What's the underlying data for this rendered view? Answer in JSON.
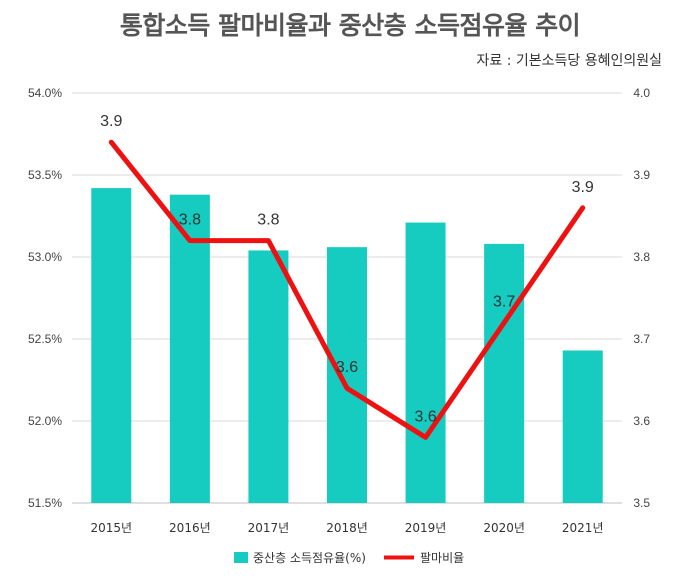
{
  "title": "통합소득 팔마비율과 중산층 소득점유율 추이",
  "source": "자료 : 기본소득당 용혜인의원실",
  "colors": {
    "bar": "#16CBC0",
    "line": "#EE1111",
    "grid": "#D9D9D9"
  },
  "chart_data": {
    "type": "bar",
    "categories": [
      "2015년",
      "2016년",
      "2017년",
      "2018년",
      "2019년",
      "2020년",
      "2021년"
    ],
    "series": [
      {
        "name": "중산층 소득점유율(%)",
        "type": "bar",
        "axis": "left",
        "values": [
          53.42,
          53.38,
          53.04,
          53.06,
          53.21,
          53.08,
          52.43
        ]
      },
      {
        "name": "팔마비율",
        "type": "line",
        "axis": "right",
        "values": [
          3.94,
          3.82,
          3.82,
          3.64,
          3.58,
          3.72,
          3.86
        ],
        "labels": [
          "3.9",
          "3.8",
          "3.8",
          "3.6",
          "3.6",
          "3.7",
          "3.9"
        ]
      }
    ],
    "left_axis": {
      "ylim": [
        51.5,
        54.0
      ],
      "ticks": [
        "51.5%",
        "52.0%",
        "52.5%",
        "53.0%",
        "53.5%",
        "54.0%"
      ]
    },
    "right_axis": {
      "ylim": [
        3.5,
        4.0
      ],
      "ticks": [
        "3.5",
        "3.6",
        "3.7",
        "3.8",
        "3.9",
        "4.0"
      ]
    },
    "grid": true,
    "legend": "bottom"
  }
}
